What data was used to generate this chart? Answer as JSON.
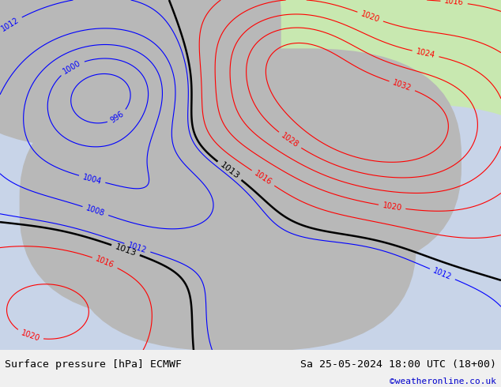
{
  "title_left": "Surface pressure [hPa] ECMWF",
  "title_right": "Sa 25-05-2024 18:00 UTC (18+00)",
  "credit": "©weatheronline.co.uk",
  "sea_color": "#c8d4e8",
  "land_color": "#c8e8b0",
  "mountain_color": "#b8b8b8",
  "bottom_bar_color": "#f0f0f0",
  "bottom_text_color": "#000000",
  "credit_color": "#0000cc",
  "fig_width": 6.34,
  "fig_height": 4.9,
  "dpi": 100,
  "bottom_bar_height": 0.095
}
